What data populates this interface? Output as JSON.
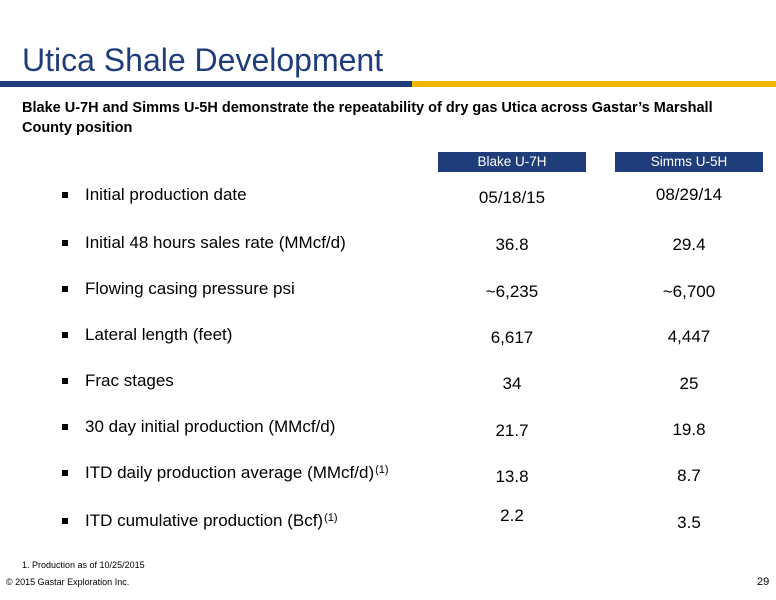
{
  "title": "Utica Shale Development",
  "subtitle": "Blake U-7H and Simms U-5H demonstrate the repeatability of dry gas Utica across Gastar’s Marshall County position",
  "colors": {
    "brand_blue": "#1f3d7a",
    "accent_gold": "#f2b705"
  },
  "columns": [
    "Blake U-7H",
    "Simms U-5H"
  ],
  "rows": [
    {
      "label": "Initial production date",
      "sup": "",
      "blake": "05/18/15",
      "simms": "08/29/14"
    },
    {
      "label": "Initial 48 hours sales rate (MMcf/d)",
      "sup": "",
      "blake": "36.8",
      "simms": "29.4"
    },
    {
      "label": "Flowing casing pressure psi",
      "sup": "",
      "blake": "~6,235",
      "simms": "~6,700"
    },
    {
      "label": "Lateral length (feet)",
      "sup": "",
      "blake": "6,617",
      "simms": "4,447"
    },
    {
      "label": "Frac stages",
      "sup": "",
      "blake": "34",
      "simms": "25"
    },
    {
      "label": "30 day initial production (MMcf/d)",
      "sup": "",
      "blake": "21.7",
      "simms": "19.8"
    },
    {
      "label": "ITD daily production average (MMcf/d)",
      "sup": "(1)",
      "blake": "13.8",
      "simms": "8.7"
    },
    {
      "label": "ITD cumulative production (Bcf)",
      "sup": "(1)",
      "blake": "2.2",
      "simms": "3.5"
    }
  ],
  "footnote": "1.   Production as of 10/25/2015",
  "copyright": "© 2015 Gastar Exploration Inc.",
  "page_number": "29"
}
